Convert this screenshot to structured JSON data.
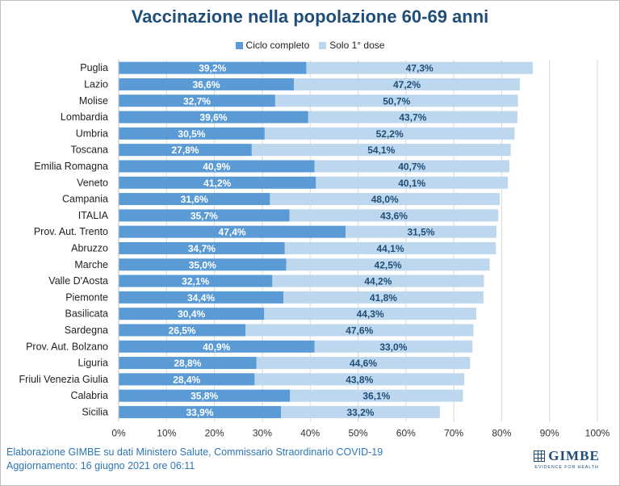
{
  "chart_data": {
    "type": "bar",
    "stacked": true,
    "orientation": "horizontal",
    "title": "Vaccinazione nella popolazione 60-69 anni",
    "categories": [
      "Puglia",
      "Lazio",
      "Molise",
      "Lombardia",
      "Umbria",
      "Toscana",
      "Emilia Romagna",
      "Veneto",
      "Campania",
      "ITALIA",
      "Prov. Aut. Trento",
      "Abruzzo",
      "Marche",
      "Valle D'Aosta",
      "Piemonte",
      "Basilicata",
      "Sardegna",
      "Prov. Aut. Bolzano",
      "Liguria",
      "Friuli Venezia Giulia",
      "Calabria",
      "Sicilia"
    ],
    "series": [
      {
        "name": "Ciclo completo",
        "color": "#5b9bd5",
        "values": [
          39.2,
          36.6,
          32.7,
          39.6,
          30.5,
          27.8,
          40.9,
          41.2,
          31.6,
          35.7,
          47.4,
          34.7,
          35.0,
          32.1,
          34.4,
          30.4,
          26.5,
          40.9,
          28.8,
          28.4,
          35.8,
          33.9
        ],
        "labels": [
          "39,2%",
          "36,6%",
          "32,7%",
          "39,6%",
          "30,5%",
          "27,8%",
          "40,9%",
          "41,2%",
          "31,6%",
          "35,7%",
          "47,4%",
          "34,7%",
          "35,0%",
          "32,1%",
          "34,4%",
          "30,4%",
          "26,5%",
          "40,9%",
          "28,8%",
          "28,4%",
          "35,8%",
          "33,9%"
        ]
      },
      {
        "name": "Solo 1° dose",
        "color": "#bdd7ee",
        "values": [
          47.3,
          47.2,
          50.7,
          43.7,
          52.2,
          54.1,
          40.7,
          40.1,
          48.0,
          43.6,
          31.5,
          44.1,
          42.5,
          44.2,
          41.8,
          44.3,
          47.6,
          33.0,
          44.6,
          43.8,
          36.1,
          33.2
        ],
        "labels": [
          "47,3%",
          "47,2%",
          "50,7%",
          "43,7%",
          "52,2%",
          "54,1%",
          "40,7%",
          "40,1%",
          "48,0%",
          "43,6%",
          "31,5%",
          "44,1%",
          "42,5%",
          "44,2%",
          "41,8%",
          "44,3%",
          "47,6%",
          "33,0%",
          "44,6%",
          "43,8%",
          "36,1%",
          "33,2%"
        ]
      }
    ],
    "xlim": [
      0,
      100
    ],
    "xticks": [
      "0%",
      "10%",
      "20%",
      "30%",
      "40%",
      "50%",
      "60%",
      "70%",
      "80%",
      "90%",
      "100%"
    ],
    "grid": true,
    "legend_position": "top"
  },
  "footer": {
    "line1": "Elaborazione GIMBE su dati Ministero Salute, Commissario Straordinario COVID-19",
    "line2": "Aggiornamento: 16 giugno 2021 ore 06:11"
  },
  "logo": {
    "name": "GIMBE",
    "tagline": "EVIDENCE FOR HEALTH"
  },
  "colors": {
    "title": "#1f4e79",
    "bar_label_primary": "#ffffff",
    "bar_label_secondary": "#1f4e79"
  }
}
